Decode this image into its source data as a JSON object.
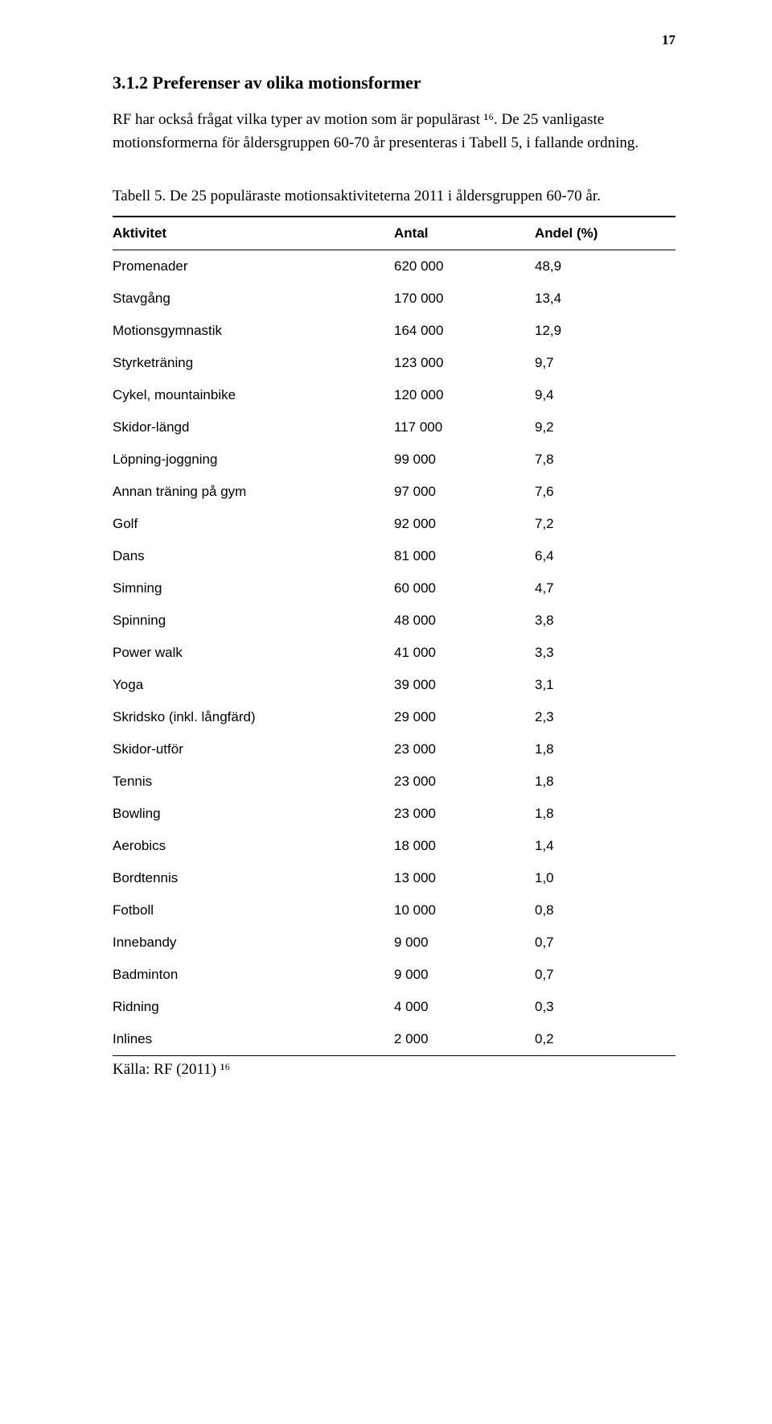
{
  "page_number": "17",
  "heading": "3.1.2 Preferenser av olika motionsformer",
  "paragraph": "RF har också frågat vilka typer av motion som är populärast ¹⁶. De 25 vanligaste motionsformerna för åldersgruppen 60-70 år presenteras i Tabell 5, i fallande ordning.",
  "table_caption": "Tabell 5. De 25 populäraste motionsaktiviteterna 2011 i åldersgruppen 60-70 år.",
  "table": {
    "columns": [
      "Aktivitet",
      "Antal",
      "Andel (%)"
    ],
    "column_widths": [
      "50%",
      "25%",
      "25%"
    ],
    "header_fontweight": "bold",
    "border_color": "#000000",
    "top_border_width": 2,
    "mid_border_width": 1,
    "bottom_border_width": 1,
    "font_family": "Verdana",
    "font_size_pt": 12,
    "rows": [
      [
        "Promenader",
        "620 000",
        "48,9"
      ],
      [
        "Stavgång",
        "170 000",
        "13,4"
      ],
      [
        "Motionsgymnastik",
        "164 000",
        "12,9"
      ],
      [
        "Styrketräning",
        "123 000",
        "9,7"
      ],
      [
        "Cykel, mountainbike",
        "120 000",
        "9,4"
      ],
      [
        "Skidor-längd",
        "117 000",
        "9,2"
      ],
      [
        "Löpning-joggning",
        "99 000",
        "7,8"
      ],
      [
        "Annan träning på gym",
        "97 000",
        "7,6"
      ],
      [
        "Golf",
        "92 000",
        "7,2"
      ],
      [
        "Dans",
        "81 000",
        "6,4"
      ],
      [
        "Simning",
        "60 000",
        "4,7"
      ],
      [
        "Spinning",
        "48 000",
        "3,8"
      ],
      [
        "Power walk",
        "41 000",
        "3,3"
      ],
      [
        "Yoga",
        "39 000",
        "3,1"
      ],
      [
        "Skridsko (inkl. långfärd)",
        "29 000",
        "2,3"
      ],
      [
        "Skidor-utför",
        "23 000",
        "1,8"
      ],
      [
        "Tennis",
        "23 000",
        "1,8"
      ],
      [
        "Bowling",
        "23 000",
        "1,8"
      ],
      [
        "Aerobics",
        "18 000",
        "1,4"
      ],
      [
        "Bordtennis",
        "13 000",
        "1,0"
      ],
      [
        "Fotboll",
        "10 000",
        "0,8"
      ],
      [
        "Innebandy",
        "9 000",
        "0,7"
      ],
      [
        "Badminton",
        "9 000",
        "0,7"
      ],
      [
        "Ridning",
        "4 000",
        "0,3"
      ],
      [
        "Inlines",
        "2 000",
        "0,2"
      ]
    ]
  },
  "source": "Källa: RF (2011) ¹⁶"
}
